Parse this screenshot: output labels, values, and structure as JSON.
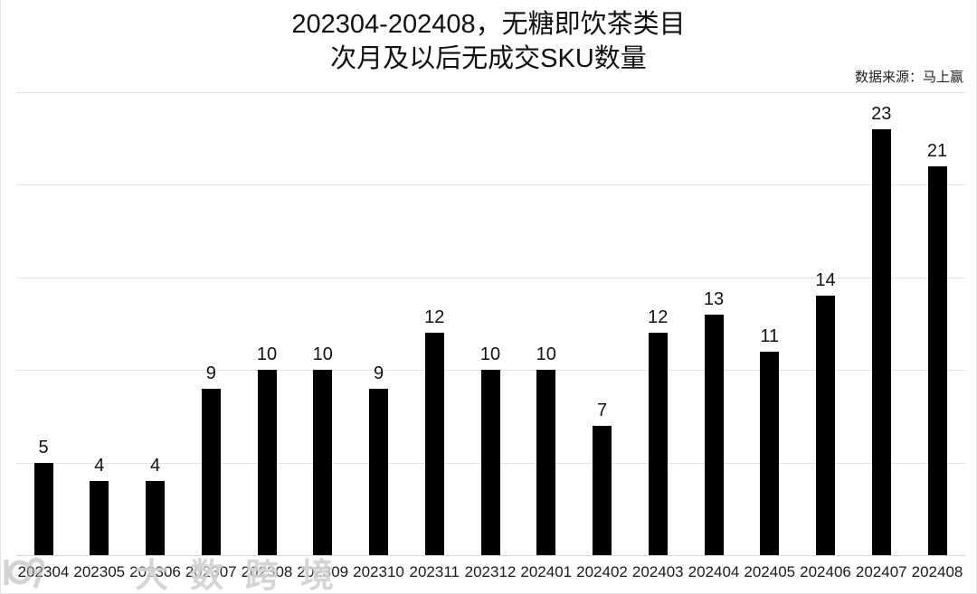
{
  "title": {
    "line1": "202304-202408，无糖即饮茶类目",
    "line2": "次月及以后无成交SKU数量"
  },
  "source_note": "数据来源：马上赢",
  "watermark": {
    "logo_icon": "dashukuajing-logo",
    "text": "大数跨境"
  },
  "colors": {
    "bar": "#000000",
    "gridline": "#e4e4e4",
    "axis_line": "#d6d6d6",
    "text": "#111111",
    "watermark": "#b2b2b2"
  },
  "chart_data": {
    "type": "bar",
    "title": "202304-202408，无糖即饮茶类目 次月及以后无成交SKU数量",
    "categories": [
      "202304",
      "202305",
      "202306",
      "202307",
      "202308",
      "202309",
      "202310",
      "202311",
      "202312",
      "202401",
      "202402",
      "202403",
      "202404",
      "202405",
      "202406",
      "202407",
      "202408"
    ],
    "values": [
      5,
      4,
      4,
      9,
      10,
      10,
      9,
      12,
      10,
      10,
      7,
      12,
      13,
      11,
      14,
      23,
      21
    ],
    "xlabel": "",
    "ylabel": "",
    "ylim": [
      0,
      25
    ],
    "gridline_values": [
      5,
      10,
      15,
      20,
      25
    ],
    "grid": "horizontal-only",
    "y_tick_labels_shown": false,
    "value_labels_shown": true,
    "legend_position": "none",
    "bar_color": "#000000",
    "source_label": "数据来源：马上赢"
  }
}
